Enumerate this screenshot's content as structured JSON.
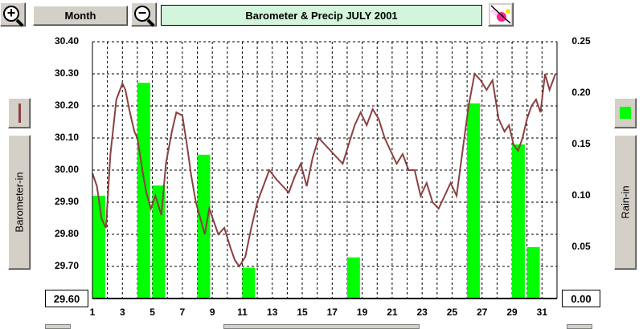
{
  "toolbar": {
    "zoom_in_icon": "+",
    "month_label": "Month",
    "zoom_out_icon": "−",
    "title": "Barometer & Precip  JULY 2001"
  },
  "left_axis": {
    "label": "Barometer-in",
    "legend_color": "#8b4040"
  },
  "right_axis": {
    "label": "Rain-in",
    "legend_color": "#00ff00"
  },
  "chart_data": {
    "type": "bar+line",
    "title": "Barometer & Precip  JULY 2001",
    "x_ticks": [
      "1",
      "3",
      "5",
      "7",
      "9",
      "11",
      "13",
      "15",
      "17",
      "19",
      "21",
      "23",
      "25",
      "27",
      "29",
      "31"
    ],
    "xlim": [
      1,
      32
    ],
    "grid": true,
    "barometer": {
      "axis": "left",
      "ylabel": "Barometer-in",
      "ylim": [
        29.6,
        30.4
      ],
      "ticks": [
        "30.40",
        "30.30",
        "30.20",
        "30.10",
        "30.00",
        "29.90",
        "29.80",
        "29.70",
        "29.60"
      ],
      "color": "#8b4040",
      "x": [
        1.0,
        1.3,
        1.6,
        1.9,
        2.2,
        2.6,
        3.0,
        3.2,
        3.5,
        3.8,
        4.0,
        4.4,
        4.6,
        4.9,
        5.2,
        5.6,
        5.9,
        6.3,
        6.6,
        7.0,
        7.3,
        7.6,
        7.9,
        8.2,
        8.5,
        8.8,
        9.1,
        9.4,
        9.8,
        10.2,
        10.5,
        10.8,
        11.2,
        11.6,
        12.0,
        12.4,
        12.8,
        13.3,
        13.7,
        14.1,
        14.5,
        14.9,
        15.3,
        15.7,
        16.1,
        16.5,
        16.9,
        17.3,
        17.7,
        18.1,
        18.5,
        18.9,
        19.3,
        19.7,
        20.1,
        20.5,
        20.9,
        21.3,
        21.7,
        22.1,
        22.5,
        22.9,
        23.3,
        23.7,
        24.1,
        24.5,
        24.9,
        25.3,
        25.7,
        26.1,
        26.5,
        26.9,
        27.3,
        27.7,
        28.1,
        28.5,
        28.8,
        29.1,
        29.4,
        29.7,
        30.0,
        30.3,
        30.6,
        30.9,
        31.2,
        31.5,
        31.9
      ],
      "y": [
        29.99,
        29.95,
        29.85,
        29.82,
        30.05,
        30.22,
        30.27,
        30.25,
        30.18,
        30.12,
        30.1,
        29.98,
        29.93,
        29.88,
        29.92,
        29.86,
        30.02,
        30.12,
        30.18,
        30.17,
        30.08,
        29.98,
        29.9,
        29.85,
        29.8,
        29.88,
        29.84,
        29.8,
        29.82,
        29.76,
        29.72,
        29.7,
        29.73,
        29.82,
        29.9,
        29.95,
        30.0,
        29.97,
        29.95,
        29.93,
        29.98,
        30.02,
        29.95,
        30.04,
        30.1,
        30.08,
        30.06,
        30.04,
        30.02,
        30.08,
        30.14,
        30.18,
        30.14,
        30.19,
        30.16,
        30.1,
        30.06,
        30.02,
        30.05,
        30.0,
        30.0,
        29.92,
        29.96,
        29.9,
        29.88,
        29.92,
        29.96,
        29.92,
        30.06,
        30.2,
        30.3,
        30.28,
        30.25,
        30.28,
        30.16,
        30.12,
        30.14,
        30.08,
        30.06,
        30.1,
        30.16,
        30.2,
        30.22,
        30.18,
        30.3,
        30.25,
        30.3
      ]
    },
    "rain": {
      "axis": "right",
      "ylabel": "Rain-in",
      "ylim": [
        0.0,
        0.25
      ],
      "ticks": [
        "0.25",
        "0.20",
        "0.15",
        "0.10",
        "0.05",
        "0.00"
      ],
      "color": "#00ff00",
      "days": [
        1,
        4,
        5,
        8,
        11,
        18,
        26,
        29,
        30
      ],
      "values": [
        0.1,
        0.21,
        0.11,
        0.14,
        0.03,
        0.04,
        0.19,
        0.15,
        0.05
      ]
    }
  }
}
